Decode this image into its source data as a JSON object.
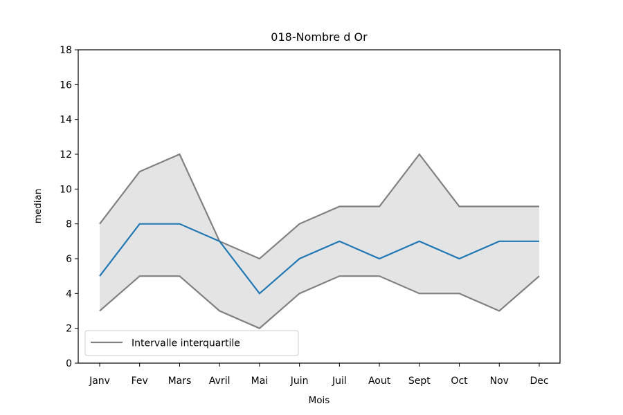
{
  "chart_data": {
    "type": "line",
    "title": "018-Nombre d Or",
    "xlabel": "Mois",
    "ylabel": "median",
    "categories": [
      "Janv",
      "Fev",
      "Mars",
      "Avril",
      "Mai",
      "Juin",
      "Juil",
      "Aout",
      "Sept",
      "Oct",
      "Nov",
      "Dec"
    ],
    "ylim": [
      0,
      18
    ],
    "yticks": [
      0,
      2,
      4,
      6,
      8,
      10,
      12,
      14,
      16,
      18
    ],
    "grid": false,
    "legend_position": "lower-left",
    "series": [
      {
        "values": [
          5,
          8,
          8,
          7,
          4,
          6,
          7,
          6,
          7,
          6,
          7,
          7
        ],
        "color": "#1f77b4"
      },
      {
        "name": "Intervalle interquartile",
        "values": [
          8,
          11,
          12,
          7,
          6,
          8,
          9,
          9,
          12,
          9,
          9,
          9
        ],
        "color": "#808080"
      },
      {
        "values": [
          3,
          5,
          5,
          3,
          2,
          4,
          5,
          5,
          4,
          4,
          3,
          5
        ],
        "color": "#808080"
      }
    ],
    "band_fill_color": "#e4e4e4"
  }
}
